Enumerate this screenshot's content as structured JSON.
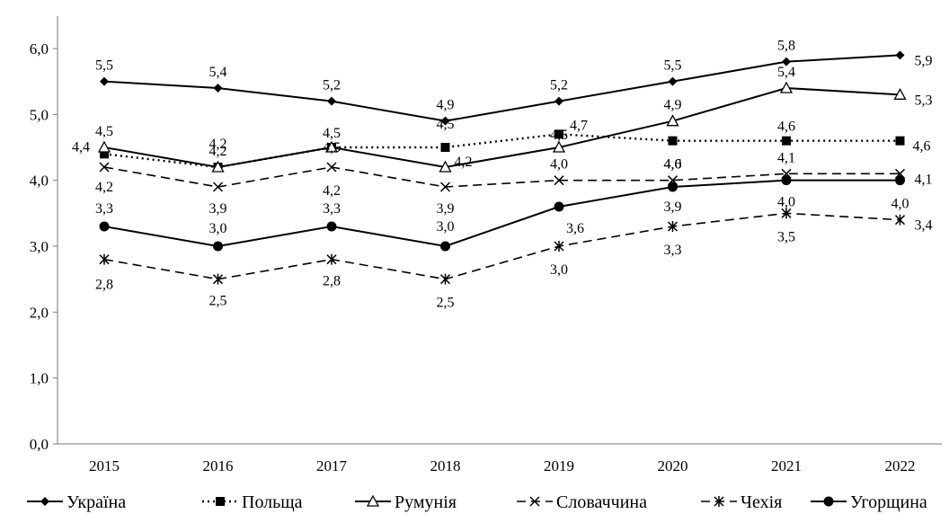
{
  "chart_data": {
    "type": "line",
    "title": "",
    "xlabel": "",
    "ylabel": "",
    "categories": [
      "2015",
      "2016",
      "2017",
      "2018",
      "2019",
      "2020",
      "2021",
      "2022"
    ],
    "ylim": [
      0,
      6
    ],
    "yticks": [
      "0,0",
      "1,0",
      "2,0",
      "3,0",
      "4,0",
      "5,0",
      "6,0"
    ],
    "grid": false,
    "legend_position": "bottom",
    "color": "#000000",
    "series": [
      {
        "name": "Україна",
        "values": [
          5.5,
          5.4,
          5.2,
          4.9,
          5.2,
          5.5,
          5.8,
          5.9
        ],
        "labels": [
          "5,5",
          "5,4",
          "5,2",
          "4,9",
          "5,2",
          "5,5",
          "5,8",
          "5,9"
        ],
        "line": "solid",
        "marker": "diamond"
      },
      {
        "name": "Польща",
        "values": [
          4.4,
          4.2,
          4.5,
          4.5,
          4.7,
          4.6,
          4.6,
          4.6
        ],
        "labels": [
          "4,4",
          "4,2",
          "4,5",
          "4,5",
          "4,7",
          "4,6",
          "4,6",
          "4,6"
        ],
        "line": "dotted",
        "marker": "square"
      },
      {
        "name": "Румунія",
        "values": [
          4.5,
          4.2,
          4.5,
          4.2,
          4.5,
          4.9,
          5.4,
          5.3
        ],
        "labels": [
          "4,5",
          "4,2",
          "4,5",
          "4,2",
          "4,5",
          "4,9",
          "5,4",
          "5,3"
        ],
        "line": "solid",
        "marker": "triangle-open"
      },
      {
        "name": "Словаччина",
        "values": [
          4.2,
          3.9,
          4.2,
          3.9,
          4.0,
          4.0,
          4.1,
          4.1
        ],
        "labels": [
          "4,2",
          "3,9",
          "4,2",
          "3,9",
          "4,0",
          "4,0",
          "4,1",
          "4,1"
        ],
        "line": "dashed",
        "marker": "x"
      },
      {
        "name": "Чехія",
        "values": [
          2.8,
          2.5,
          2.8,
          2.5,
          3.0,
          3.3,
          3.5,
          3.4
        ],
        "labels": [
          "2,8",
          "2,5",
          "2,8",
          "2,5",
          "3,0",
          "3,3",
          "3,5",
          "3,4"
        ],
        "line": "dashed",
        "marker": "star"
      },
      {
        "name": "Угорщина",
        "values": [
          3.3,
          3.0,
          3.3,
          3.0,
          3.6,
          3.9,
          4.0,
          4.0
        ],
        "labels": [
          "3,3",
          "3,0",
          "3,3",
          "3,0",
          "3,6",
          "3,9",
          "4,0",
          "4,0"
        ],
        "line": "solid",
        "marker": "circle"
      }
    ]
  }
}
